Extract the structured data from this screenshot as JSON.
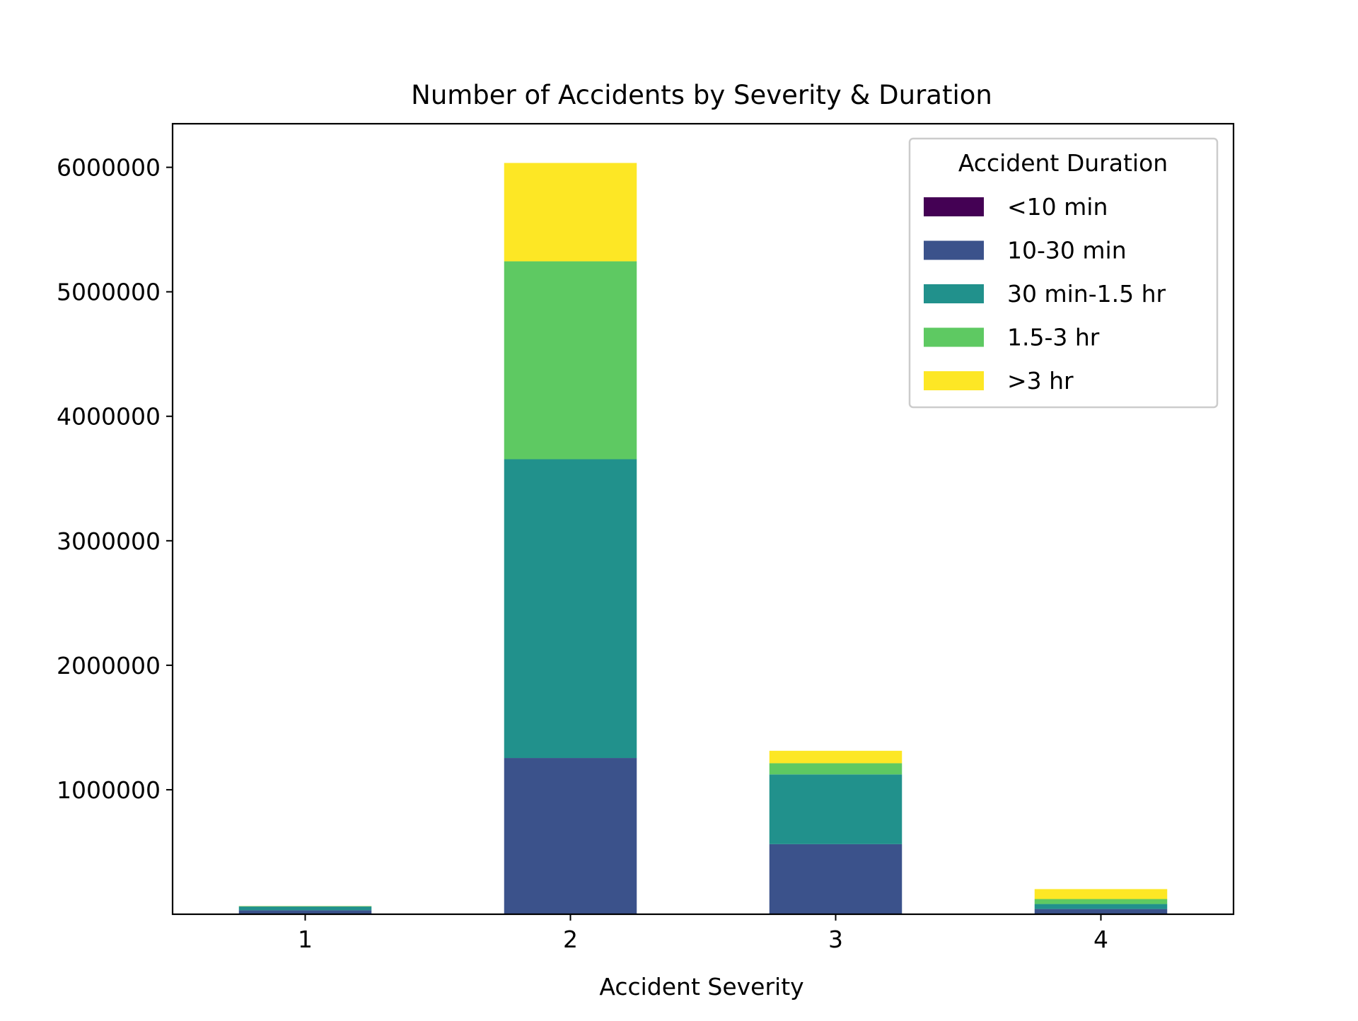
{
  "chart_data": {
    "type": "bar",
    "stacked": true,
    "title": "Number of Accidents by Severity & Duration",
    "xlabel": "Accident Severity",
    "ylabel": "",
    "categories": [
      "1",
      "2",
      "3",
      "4"
    ],
    "yticks": [
      1000000,
      2000000,
      3000000,
      4000000,
      5000000,
      6000000
    ],
    "ylim": [
      0,
      6350000
    ],
    "grid": false,
    "legend": {
      "title": "Accident Duration",
      "placement": "top-right"
    },
    "series": [
      {
        "name": "<10 min",
        "color": "#440154",
        "values": [
          2000,
          5000,
          3000,
          2000
        ]
      },
      {
        "name": "10-30 min",
        "color": "#3b528b",
        "values": [
          30000,
          1250000,
          560000,
          40000
        ]
      },
      {
        "name": "30 min-1.5 hr",
        "color": "#21918c",
        "values": [
          30000,
          2400000,
          560000,
          40000
        ]
      },
      {
        "name": "1.5-3 hr",
        "color": "#5ec962",
        "values": [
          3000,
          1590000,
          90000,
          40000
        ]
      },
      {
        "name": ">3 hr",
        "color": "#fde725",
        "values": [
          1000,
          790000,
          100000,
          80000
        ]
      }
    ]
  }
}
